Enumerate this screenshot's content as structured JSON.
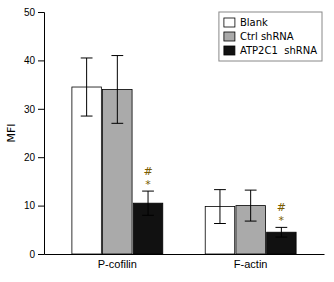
{
  "chart_data": {
    "type": "bar",
    "categories": [
      "P-cofilin",
      "F-actin"
    ],
    "series": [
      {
        "name": "Blank",
        "color": "#ffffff",
        "values": [
          34.5,
          9.8
        ],
        "errors": [
          6.0,
          3.5
        ]
      },
      {
        "name": "Ctrl shRNA",
        "color": "#aaaaaa",
        "values": [
          34.0,
          10.0
        ],
        "errors": [
          7.0,
          3.2
        ]
      },
      {
        "name": "ATP2C1  shRNA",
        "color": "#111111",
        "values": [
          10.5,
          4.5
        ],
        "errors": [
          2.5,
          1.0
        ]
      }
    ],
    "ylabel": "MFI",
    "ylim": [
      0,
      50
    ],
    "yticks": [
      0,
      10,
      20,
      30,
      40,
      50
    ],
    "annotations": [
      {
        "text": "*",
        "category": "P-cofilin",
        "series": "ATP2C1  shRNA",
        "color": "#7a5c00"
      },
      {
        "text": "#",
        "category": "P-cofilin",
        "series": "ATP2C1  shRNA",
        "color": "#7a5c00"
      },
      {
        "text": "*",
        "category": "F-actin",
        "series": "ATP2C1  shRNA",
        "color": "#7a5c00"
      },
      {
        "text": "#",
        "category": "F-actin",
        "series": "ATP2C1  shRNA",
        "color": "#7a5c00"
      }
    ],
    "legend": "upper right",
    "grid": false
  }
}
